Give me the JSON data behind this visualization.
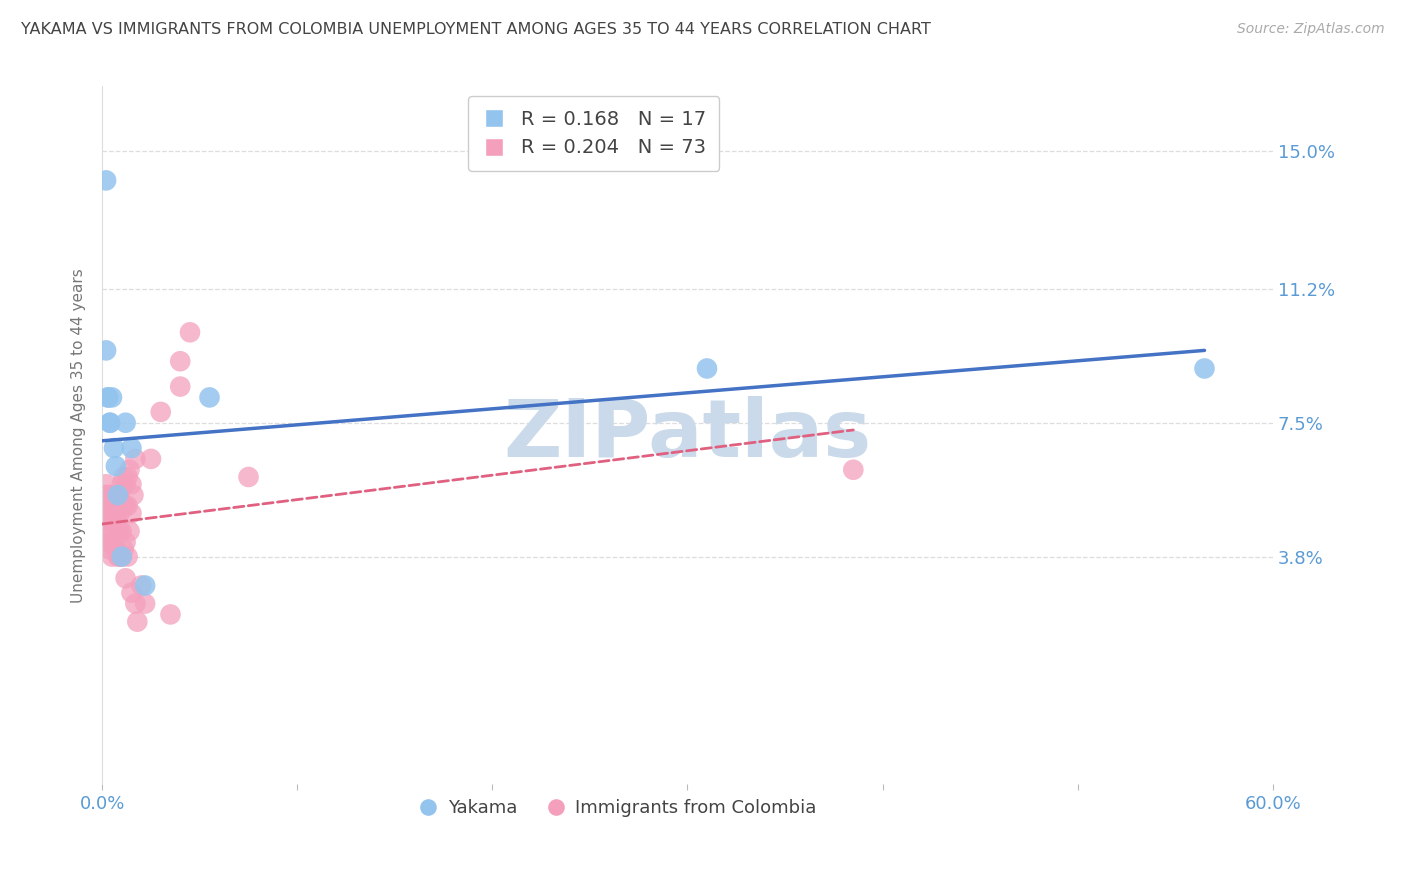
{
  "title": "YAKAMA VS IMMIGRANTS FROM COLOMBIA UNEMPLOYMENT AMONG AGES 35 TO 44 YEARS CORRELATION CHART",
  "source": "Source: ZipAtlas.com",
  "ylabel": "Unemployment Among Ages 35 to 44 years",
  "xlim": [
    0.0,
    0.6
  ],
  "ylim": [
    -0.025,
    0.168
  ],
  "yticks": [
    0.038,
    0.075,
    0.112,
    0.15
  ],
  "ytick_labels": [
    "3.8%",
    "7.5%",
    "11.2%",
    "15.0%"
  ],
  "xticks": [
    0.0,
    0.1,
    0.2,
    0.3,
    0.4,
    0.5,
    0.6
  ],
  "legend_labels": [
    "Yakama",
    "Immigrants from Colombia"
  ],
  "R_yakama": 0.168,
  "N_yakama": 17,
  "R_colombia": 0.204,
  "N_colombia": 73,
  "blue_color": "#93C4EE",
  "pink_color": "#F4A0BC",
  "blue_line_color": "#4472C4",
  "pink_line_color": "#E06080",
  "watermark": "ZIPatlas",
  "watermark_color": "#CADAEA",
  "background_color": "#FFFFFF",
  "grid_color": "#DDDDDD",
  "title_color": "#444444",
  "axis_label_color": "#5B9BD5",
  "yakama_x": [
    0.002,
    0.002,
    0.003,
    0.003,
    0.004,
    0.004,
    0.005,
    0.006,
    0.007,
    0.008,
    0.01,
    0.012,
    0.015,
    0.022,
    0.055,
    0.31,
    0.565
  ],
  "yakama_y": [
    0.142,
    0.095,
    0.082,
    0.082,
    0.075,
    0.075,
    0.082,
    0.068,
    0.063,
    0.055,
    0.038,
    0.075,
    0.068,
    0.03,
    0.082,
    0.09,
    0.09
  ],
  "colombia_x": [
    0.001,
    0.001,
    0.002,
    0.002,
    0.002,
    0.002,
    0.002,
    0.003,
    0.003,
    0.003,
    0.003,
    0.003,
    0.003,
    0.004,
    0.004,
    0.004,
    0.004,
    0.004,
    0.004,
    0.005,
    0.005,
    0.005,
    0.005,
    0.005,
    0.005,
    0.006,
    0.006,
    0.006,
    0.007,
    0.007,
    0.007,
    0.007,
    0.008,
    0.008,
    0.008,
    0.008,
    0.009,
    0.009,
    0.009,
    0.009,
    0.01,
    0.01,
    0.01,
    0.01,
    0.011,
    0.011,
    0.011,
    0.012,
    0.012,
    0.012,
    0.012,
    0.013,
    0.013,
    0.013,
    0.014,
    0.014,
    0.015,
    0.015,
    0.015,
    0.016,
    0.017,
    0.017,
    0.018,
    0.02,
    0.022,
    0.025,
    0.03,
    0.035,
    0.04,
    0.04,
    0.045,
    0.075,
    0.385
  ],
  "colombia_y": [
    0.055,
    0.05,
    0.058,
    0.055,
    0.052,
    0.05,
    0.048,
    0.055,
    0.052,
    0.05,
    0.048,
    0.045,
    0.042,
    0.055,
    0.052,
    0.05,
    0.048,
    0.045,
    0.04,
    0.055,
    0.052,
    0.05,
    0.048,
    0.042,
    0.038,
    0.052,
    0.048,
    0.042,
    0.055,
    0.05,
    0.048,
    0.04,
    0.052,
    0.05,
    0.045,
    0.038,
    0.055,
    0.05,
    0.045,
    0.038,
    0.058,
    0.052,
    0.045,
    0.038,
    0.06,
    0.052,
    0.04,
    0.058,
    0.052,
    0.042,
    0.032,
    0.06,
    0.052,
    0.038,
    0.062,
    0.045,
    0.058,
    0.05,
    0.028,
    0.055,
    0.065,
    0.025,
    0.02,
    0.03,
    0.025,
    0.065,
    0.078,
    0.022,
    0.092,
    0.085,
    0.1,
    0.06,
    0.062
  ],
  "blue_trend_x0": 0.0,
  "blue_trend_y0": 0.07,
  "blue_trend_x1": 0.565,
  "blue_trend_y1": 0.095,
  "pink_trend_x0": 0.0,
  "pink_trend_y0": 0.047,
  "pink_trend_x1": 0.385,
  "pink_trend_y1": 0.073
}
